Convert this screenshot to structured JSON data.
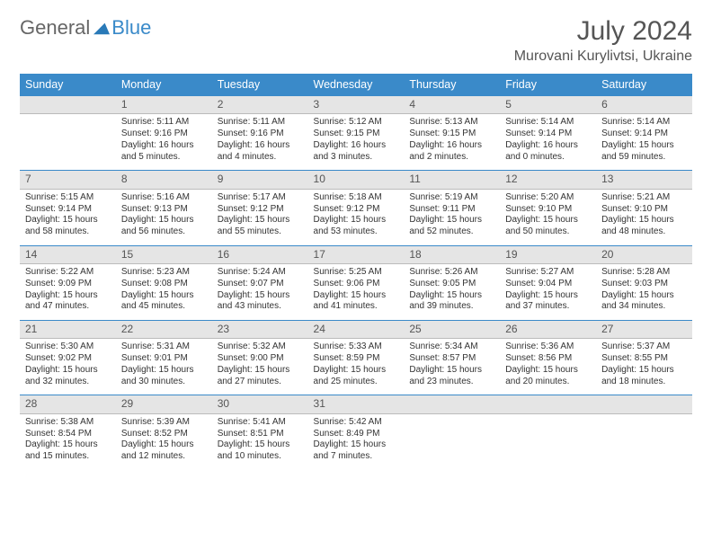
{
  "brand": {
    "word1": "General",
    "word2": "Blue",
    "tri_color": "#2a7ab8"
  },
  "title": "July 2024",
  "location": "Murovani Kurylivtsi, Ukraine",
  "colors": {
    "header_bg": "#3a8ac9",
    "daynum_bg": "#e5e5e5",
    "rule": "#3a8ac9"
  },
  "weekdays": [
    "Sunday",
    "Monday",
    "Tuesday",
    "Wednesday",
    "Thursday",
    "Friday",
    "Saturday"
  ],
  "first_weekday_index": 1,
  "days": [
    {
      "n": 1,
      "sunrise": "5:11 AM",
      "sunset": "9:16 PM",
      "dl": "16 hours and 5 minutes."
    },
    {
      "n": 2,
      "sunrise": "5:11 AM",
      "sunset": "9:16 PM",
      "dl": "16 hours and 4 minutes."
    },
    {
      "n": 3,
      "sunrise": "5:12 AM",
      "sunset": "9:15 PM",
      "dl": "16 hours and 3 minutes."
    },
    {
      "n": 4,
      "sunrise": "5:13 AM",
      "sunset": "9:15 PM",
      "dl": "16 hours and 2 minutes."
    },
    {
      "n": 5,
      "sunrise": "5:14 AM",
      "sunset": "9:14 PM",
      "dl": "16 hours and 0 minutes."
    },
    {
      "n": 6,
      "sunrise": "5:14 AM",
      "sunset": "9:14 PM",
      "dl": "15 hours and 59 minutes."
    },
    {
      "n": 7,
      "sunrise": "5:15 AM",
      "sunset": "9:14 PM",
      "dl": "15 hours and 58 minutes."
    },
    {
      "n": 8,
      "sunrise": "5:16 AM",
      "sunset": "9:13 PM",
      "dl": "15 hours and 56 minutes."
    },
    {
      "n": 9,
      "sunrise": "5:17 AM",
      "sunset": "9:12 PM",
      "dl": "15 hours and 55 minutes."
    },
    {
      "n": 10,
      "sunrise": "5:18 AM",
      "sunset": "9:12 PM",
      "dl": "15 hours and 53 minutes."
    },
    {
      "n": 11,
      "sunrise": "5:19 AM",
      "sunset": "9:11 PM",
      "dl": "15 hours and 52 minutes."
    },
    {
      "n": 12,
      "sunrise": "5:20 AM",
      "sunset": "9:10 PM",
      "dl": "15 hours and 50 minutes."
    },
    {
      "n": 13,
      "sunrise": "5:21 AM",
      "sunset": "9:10 PM",
      "dl": "15 hours and 48 minutes."
    },
    {
      "n": 14,
      "sunrise": "5:22 AM",
      "sunset": "9:09 PM",
      "dl": "15 hours and 47 minutes."
    },
    {
      "n": 15,
      "sunrise": "5:23 AM",
      "sunset": "9:08 PM",
      "dl": "15 hours and 45 minutes."
    },
    {
      "n": 16,
      "sunrise": "5:24 AM",
      "sunset": "9:07 PM",
      "dl": "15 hours and 43 minutes."
    },
    {
      "n": 17,
      "sunrise": "5:25 AM",
      "sunset": "9:06 PM",
      "dl": "15 hours and 41 minutes."
    },
    {
      "n": 18,
      "sunrise": "5:26 AM",
      "sunset": "9:05 PM",
      "dl": "15 hours and 39 minutes."
    },
    {
      "n": 19,
      "sunrise": "5:27 AM",
      "sunset": "9:04 PM",
      "dl": "15 hours and 37 minutes."
    },
    {
      "n": 20,
      "sunrise": "5:28 AM",
      "sunset": "9:03 PM",
      "dl": "15 hours and 34 minutes."
    },
    {
      "n": 21,
      "sunrise": "5:30 AM",
      "sunset": "9:02 PM",
      "dl": "15 hours and 32 minutes."
    },
    {
      "n": 22,
      "sunrise": "5:31 AM",
      "sunset": "9:01 PM",
      "dl": "15 hours and 30 minutes."
    },
    {
      "n": 23,
      "sunrise": "5:32 AM",
      "sunset": "9:00 PM",
      "dl": "15 hours and 27 minutes."
    },
    {
      "n": 24,
      "sunrise": "5:33 AM",
      "sunset": "8:59 PM",
      "dl": "15 hours and 25 minutes."
    },
    {
      "n": 25,
      "sunrise": "5:34 AM",
      "sunset": "8:57 PM",
      "dl": "15 hours and 23 minutes."
    },
    {
      "n": 26,
      "sunrise": "5:36 AM",
      "sunset": "8:56 PM",
      "dl": "15 hours and 20 minutes."
    },
    {
      "n": 27,
      "sunrise": "5:37 AM",
      "sunset": "8:55 PM",
      "dl": "15 hours and 18 minutes."
    },
    {
      "n": 28,
      "sunrise": "5:38 AM",
      "sunset": "8:54 PM",
      "dl": "15 hours and 15 minutes."
    },
    {
      "n": 29,
      "sunrise": "5:39 AM",
      "sunset": "8:52 PM",
      "dl": "15 hours and 12 minutes."
    },
    {
      "n": 30,
      "sunrise": "5:41 AM",
      "sunset": "8:51 PM",
      "dl": "15 hours and 10 minutes."
    },
    {
      "n": 31,
      "sunrise": "5:42 AM",
      "sunset": "8:49 PM",
      "dl": "15 hours and 7 minutes."
    }
  ],
  "labels": {
    "sunrise": "Sunrise:",
    "sunset": "Sunset:",
    "daylight": "Daylight:"
  }
}
